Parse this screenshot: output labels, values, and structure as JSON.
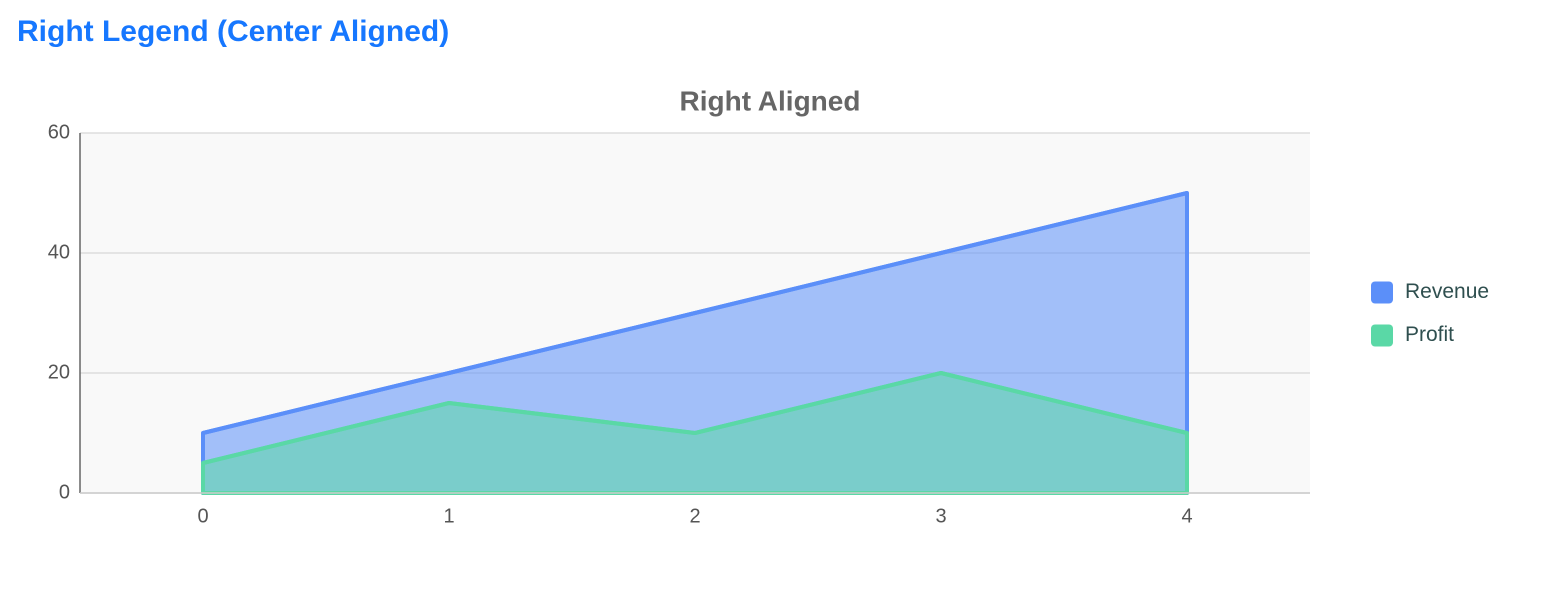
{
  "header": {
    "title": "Right Legend (Center Aligned)"
  },
  "chart_data": {
    "type": "area",
    "title": "Right Aligned",
    "x": [
      0,
      1,
      2,
      3,
      4
    ],
    "xlim": [
      -0.5,
      4.5
    ],
    "xticks": [
      0,
      1,
      2,
      3,
      4
    ],
    "ylim": [
      0,
      60
    ],
    "yticks": [
      0,
      20,
      40,
      60
    ],
    "grid": true,
    "legend": "right",
    "series": [
      {
        "name": "Revenue",
        "color": "#5b8ff9",
        "values": [
          10,
          20,
          30,
          40,
          50
        ]
      },
      {
        "name": "Profit",
        "color": "#5ad8a6",
        "values": [
          5,
          15,
          10,
          20,
          10
        ]
      }
    ]
  }
}
